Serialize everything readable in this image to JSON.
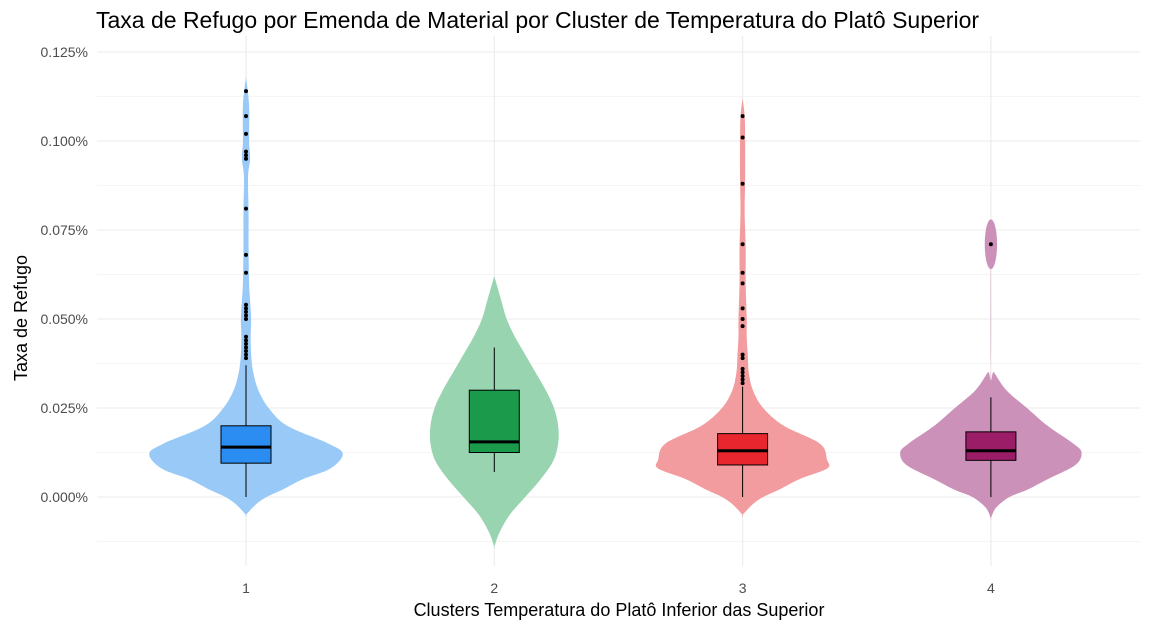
{
  "chart_data": {
    "type": "violin",
    "title": "Taxa de Refugo por Emenda de Material por Cluster de Temperatura do Platô Superior",
    "xlabel": "Clusters Temperatura do Platô Inferior das Superior",
    "ylabel": "Taxa de Refugo",
    "categories": [
      "1",
      "2",
      "3",
      "4"
    ],
    "ylim": [
      -0.00025,
      0.00125
    ],
    "y_ticks": [
      0,
      0.00025,
      0.0005,
      0.00075,
      0.001,
      0.00125
    ],
    "y_tick_labels": [
      "0.000%",
      "0.025%",
      "0.050%",
      "0.075%",
      "0.100%",
      "0.125%"
    ],
    "grid": true,
    "legend": "none",
    "groups": [
      {
        "category": "1",
        "violin_color": "#99c9f7",
        "box_color": "#2b8cf2",
        "violin": {
          "min": -5e-05,
          "max": 0.00118,
          "mode": 0.000121,
          "width_at_mode": 0.94,
          "upper_profile": [
            [
              0.00015,
              0.8
            ],
            [
              0.0002,
              0.4
            ],
            [
              0.00025,
              0.22
            ],
            [
              0.0003,
              0.12
            ],
            [
              0.00035,
              0.07
            ],
            [
              0.0004,
              0.05
            ],
            [
              0.00045,
              0.045
            ],
            [
              0.0005,
              0.05
            ],
            [
              0.00055,
              0.04
            ],
            [
              0.0006,
              0.03
            ],
            [
              0.0007,
              0.025
            ],
            [
              0.0008,
              0.025
            ],
            [
              0.0009,
              0.02
            ],
            [
              0.00095,
              0.04
            ],
            [
              0.001,
              0.03
            ],
            [
              0.0011,
              0.03
            ]
          ],
          "lower_profile": [
            [
              8e-05,
              0.82
            ],
            [
              5e-05,
              0.55
            ],
            [
              2e-05,
              0.35
            ],
            [
              0.0,
              0.2
            ],
            [
              -2e-05,
              0.1
            ]
          ]
        },
        "box": {
          "q1": 9.5e-05,
          "median": 0.00014,
          "q3": 0.0002,
          "whisker_low": 0.0,
          "whisker_high": 0.00037
        },
        "outliers": [
          0.00114,
          0.00107,
          0.00102,
          0.00097,
          0.00096,
          0.00095,
          0.00081,
          0.00068,
          0.00063,
          0.00054,
          0.00053,
          0.00052,
          0.00051,
          0.0005,
          0.00045,
          0.00044,
          0.00043,
          0.00042,
          0.00041,
          0.0004,
          0.00039
        ]
      },
      {
        "category": "2",
        "violin_color": "#99d4b0",
        "box_color": "#1a9a4a",
        "violin": {
          "min": -0.00014,
          "max": 0.00062,
          "mode": 0.00015,
          "width_at_mode": 0.62,
          "upper_profile": [
            [
              0.0002,
              0.62
            ],
            [
              0.00025,
              0.58
            ],
            [
              0.0003,
              0.5
            ],
            [
              0.00035,
              0.4
            ],
            [
              0.0004,
              0.3
            ],
            [
              0.00045,
              0.2
            ],
            [
              0.0005,
              0.12
            ],
            [
              0.00055,
              0.07
            ]
          ],
          "lower_profile": [
            [
              0.0001,
              0.57
            ],
            [
              5e-05,
              0.45
            ],
            [
              0.0,
              0.3
            ],
            [
              -5e-05,
              0.15
            ],
            [
              -0.0001,
              0.05
            ]
          ]
        },
        "box": {
          "q1": 0.000125,
          "median": 0.000155,
          "q3": 0.0003,
          "whisker_low": 7e-05,
          "whisker_high": 0.00042
        },
        "outliers": []
      },
      {
        "category": "3",
        "violin_color": "#f39c9f",
        "box_color": "#e8262d",
        "violin": {
          "min": -5e-05,
          "max": 0.00112,
          "mode": 0.000105,
          "width_at_mode": 0.82,
          "upper_profile": [
            [
              0.00015,
              0.75
            ],
            [
              0.0002,
              0.4
            ],
            [
              0.00025,
              0.2
            ],
            [
              0.0003,
              0.1
            ],
            [
              0.00035,
              0.06
            ],
            [
              0.0004,
              0.05
            ],
            [
              0.00045,
              0.04
            ],
            [
              0.0005,
              0.04
            ],
            [
              0.0006,
              0.03
            ],
            [
              0.0007,
              0.03
            ],
            [
              0.0008,
              0.02
            ],
            [
              0.0009,
              0.025
            ],
            [
              0.001,
              0.025
            ],
            [
              0.00107,
              0.02
            ]
          ],
          "lower_profile": [
            [
              8e-05,
              0.82
            ],
            [
              5e-05,
              0.55
            ],
            [
              2e-05,
              0.35
            ],
            [
              0.0,
              0.2
            ],
            [
              -2e-05,
              0.1
            ]
          ]
        },
        "box": {
          "q1": 9e-05,
          "median": 0.00013,
          "q3": 0.000178,
          "whisker_low": 0.0,
          "whisker_high": 0.00031
        },
        "outliers": [
          0.00107,
          0.00101,
          0.00088,
          0.00071,
          0.00063,
          0.0006,
          0.00053,
          0.0005,
          0.00048,
          0.0004,
          0.00039,
          0.00036,
          0.00035,
          0.00034,
          0.00033,
          0.00032
        ]
      },
      {
        "category": "4",
        "violin_color": "#cc91b9",
        "box_color": "#9c1d67",
        "violin": {
          "min": -6e-05,
          "max": 0.00078,
          "mode": 0.000125,
          "width_at_mode": 0.88,
          "upper_profile": [
            [
              0.00015,
              0.8
            ],
            [
              0.0002,
              0.55
            ],
            [
              0.00025,
              0.35
            ],
            [
              0.0003,
              0.15
            ],
            [
              0.00035,
              0.03
            ],
            [
              0.00036,
              0.0
            ]
          ],
          "lower_profile": [
            [
              9e-05,
              0.82
            ],
            [
              5e-05,
              0.55
            ],
            [
              2e-05,
              0.35
            ],
            [
              0.0,
              0.18
            ],
            [
              -3e-05,
              0.05
            ]
          ],
          "island": {
            "center": 0.00071,
            "half_height": 7e-05,
            "width": 0.06
          }
        },
        "box": {
          "q1": 0.000103,
          "median": 0.00013,
          "q3": 0.000183,
          "whisker_low": 0.0,
          "whisker_high": 0.00028
        },
        "outliers": [
          0.00071
        ]
      }
    ]
  }
}
